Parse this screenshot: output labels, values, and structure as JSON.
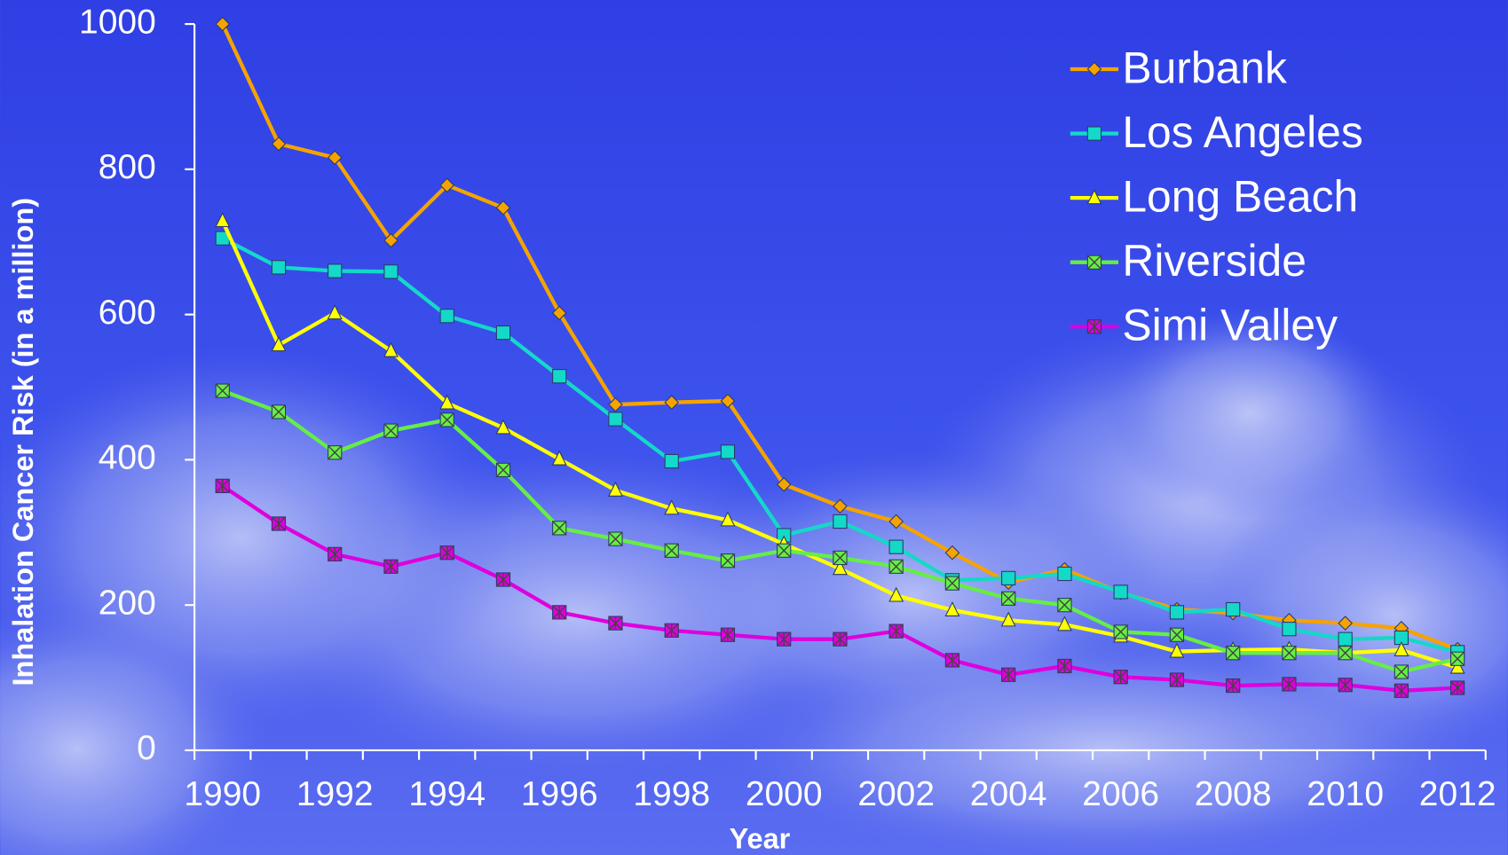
{
  "chart_data": {
    "type": "line",
    "x_label": "Year",
    "y_label": "Inhalation Cancer Risk (in a million)",
    "x": [
      1990,
      1991,
      1992,
      1993,
      1994,
      1995,
      1996,
      1997,
      1998,
      1999,
      2000,
      2001,
      2002,
      2003,
      2004,
      2005,
      2006,
      2007,
      2008,
      2009,
      2010,
      2011,
      2012
    ],
    "xlim": [
      1989.5,
      2012.5
    ],
    "xticks": [
      1990,
      1992,
      1994,
      1996,
      1998,
      2000,
      2002,
      2004,
      2006,
      2008,
      2010,
      2012
    ],
    "ylim": [
      0,
      1000
    ],
    "yticks": [
      0,
      200,
      400,
      600,
      800,
      1000
    ],
    "legend": "top-right",
    "series": [
      {
        "name": "Burbank",
        "color": "#f5a300",
        "marker": "diamond",
        "values": [
          1000,
          835,
          816,
          702,
          778,
          747,
          602,
          476,
          479,
          481,
          366,
          336,
          315,
          272,
          231,
          249,
          217,
          194,
          189,
          179,
          175,
          168,
          139
        ]
      },
      {
        "name": "Los Angeles",
        "color": "#14d8c8",
        "marker": "square",
        "values": [
          705,
          665,
          660,
          659,
          598,
          575,
          515,
          456,
          398,
          411,
          296,
          315,
          280,
          234,
          237,
          243,
          218,
          190,
          194,
          167,
          153,
          155,
          135
        ]
      },
      {
        "name": "Long Beach",
        "color": "#ffff00",
        "marker": "triangle",
        "values": [
          729,
          558,
          602,
          550,
          478,
          444,
          401,
          358,
          333,
          317,
          284,
          250,
          213,
          193,
          179,
          173,
          157,
          136,
          138,
          139,
          134,
          138,
          114
        ]
      },
      {
        "name": "Riverside",
        "color": "#66ee44",
        "marker": "xsquare",
        "values": [
          495,
          466,
          410,
          440,
          455,
          386,
          306,
          291,
          275,
          261,
          275,
          265,
          253,
          230,
          209,
          200,
          163,
          159,
          134,
          134,
          134,
          108,
          126
        ]
      },
      {
        "name": "Simi Valley",
        "color": "#dd00dd",
        "marker": "star",
        "values": [
          364,
          312,
          270,
          253,
          272,
          235,
          190,
          175,
          165,
          159,
          153,
          153,
          164,
          124,
          104,
          116,
          101,
          97,
          89,
          91,
          90,
          82,
          86
        ]
      }
    ]
  }
}
